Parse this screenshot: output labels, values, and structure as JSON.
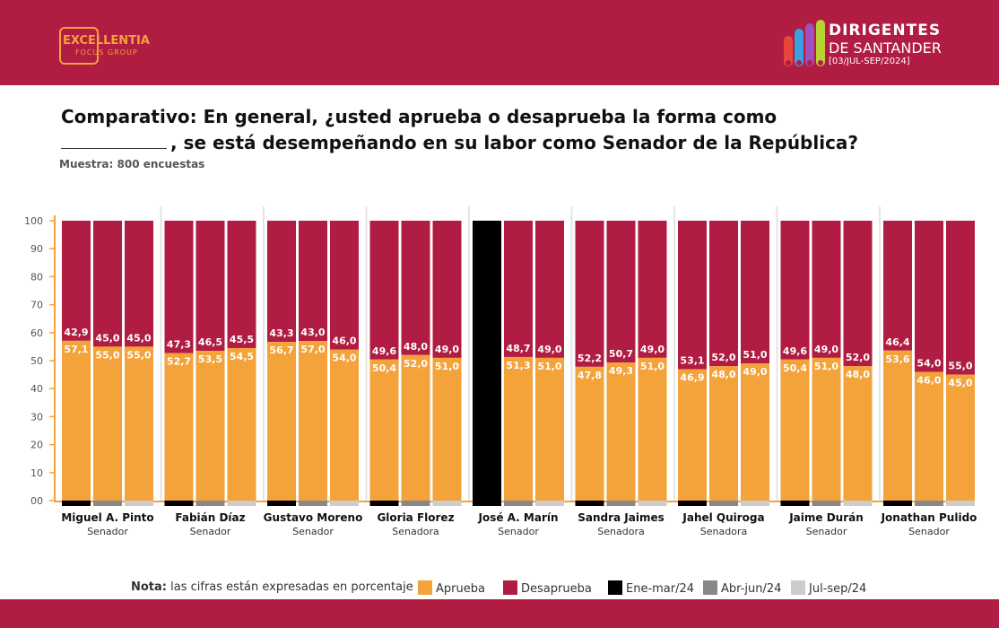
{
  "header": {
    "left_logo_line1": "EXCELLENTIA",
    "left_logo_line2": "FOCUS GROUP",
    "right_logo_line1": "DIRIGENTES",
    "right_logo_line2": "DE SANTANDER",
    "right_logo_line3": "[03/JUL-SEP/2024]"
  },
  "title_line1": "Comparativo: En general, ¿usted aprueba o desaprueba la forma como",
  "title_line2": ", se está desempeñando en su labor como Senador de la República?",
  "sample": "Muestra: 800 encuestas",
  "legend": {
    "note_bold": "Nota:",
    "note_text": "las cifras están expresadas en porcentaje",
    "approve": "Aprueba",
    "disapprove": "Desaprueba",
    "p1": "Ene-mar/24",
    "p2": "Abr-jun/24",
    "p3": "Jul-sep/24"
  },
  "colors": {
    "header": "#b01c42",
    "approve": "#f4a23a",
    "disapprove": "#b01c42",
    "p1": "#000000",
    "p2": "#888888",
    "p3": "#cccccc",
    "axis": "#f4a23a"
  },
  "chart_data": {
    "type": "bar",
    "stacked": true,
    "ylim": [
      0,
      100
    ],
    "yticks": [
      "00",
      "10",
      "20",
      "30",
      "40",
      "50",
      "60",
      "70",
      "80",
      "90",
      "100"
    ],
    "periods": [
      "Ene-mar/24",
      "Abr-jun/24",
      "Jul-sep/24"
    ],
    "candidates": [
      {
        "name": "Miguel A. Pinto",
        "role": "Senador",
        "approve": [
          57.1,
          55.0,
          55.0
        ],
        "disapprove": [
          42.9,
          45.0,
          45.0
        ]
      },
      {
        "name": "Fabián Díaz",
        "role": "Senador",
        "approve": [
          52.7,
          53.5,
          54.5
        ],
        "disapprove": [
          47.3,
          46.5,
          45.5
        ]
      },
      {
        "name": "Gustavo Moreno",
        "role": "Senador",
        "approve": [
          56.7,
          57.0,
          54.0
        ],
        "disapprove": [
          43.3,
          43.0,
          46.0
        ]
      },
      {
        "name": "Gloria Florez",
        "role": "Senadora",
        "approve": [
          50.4,
          52.0,
          51.0
        ],
        "disapprove": [
          49.6,
          48.0,
          49.0
        ]
      },
      {
        "name": "José A. Marín",
        "role": "Senador",
        "approve": [
          null,
          51.3,
          51.0
        ],
        "disapprove": [
          null,
          48.7,
          49.0
        ]
      },
      {
        "name": "Sandra Jaimes",
        "role": "Senadora",
        "approve": [
          47.8,
          49.3,
          51.0
        ],
        "disapprove": [
          52.2,
          50.7,
          49.0
        ]
      },
      {
        "name": "Jahel Quiroga",
        "role": "Senadora",
        "approve": [
          46.9,
          48.0,
          49.0
        ],
        "disapprove": [
          53.1,
          52.0,
          51.0
        ]
      },
      {
        "name": "Jaime Durán",
        "role": "Senador",
        "approve": [
          50.4,
          51.0,
          48.0
        ],
        "disapprove": [
          49.6,
          49.0,
          52.0
        ]
      },
      {
        "name": "Jonathan Pulido",
        "role": "Senador",
        "approve": [
          53.6,
          46.0,
          45.0
        ],
        "disapprove": [
          46.4,
          54.0,
          55.0
        ]
      }
    ]
  }
}
